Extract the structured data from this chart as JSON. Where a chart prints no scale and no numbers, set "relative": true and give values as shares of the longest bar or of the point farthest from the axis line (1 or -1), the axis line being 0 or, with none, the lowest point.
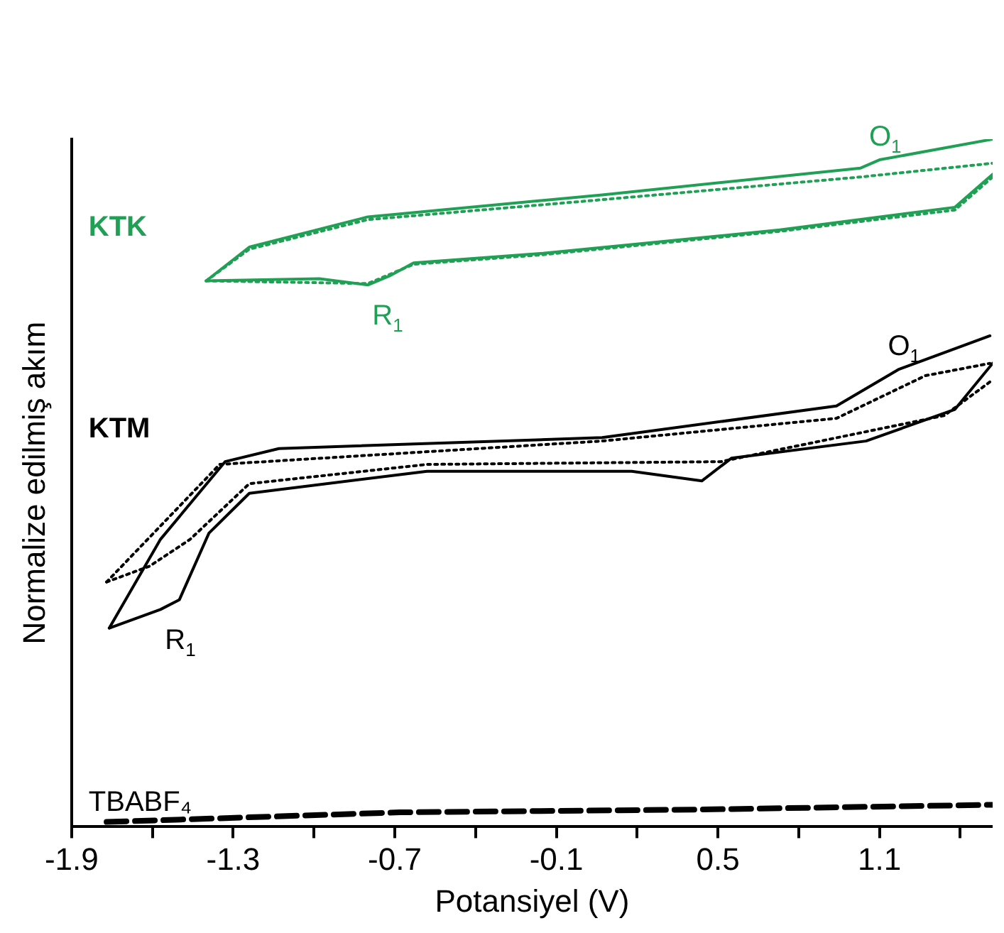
{
  "chart_data": {
    "type": "line",
    "relative": true,
    "xlabel": "Potansiyel (V)",
    "ylabel": "Normalize edilmiş akım",
    "xlim": [
      -1.9,
      1.52
    ],
    "xticks": [
      -1.9,
      {
        "value": -1.6,
        "label": null
      },
      -1.3,
      {
        "value": -1.0,
        "label": null
      },
      -0.7,
      {
        "value": -0.4,
        "label": null
      },
      -0.1,
      {
        "value": 0.2,
        "label": null
      },
      0.5,
      {
        "value": 0.8,
        "label": null
      },
      1.1,
      {
        "value": 1.4,
        "label": null
      }
    ],
    "series": [
      {
        "name": "KTK",
        "color": "#1fa055",
        "line_style": "solid",
        "x": [
          -1.4,
          -1.24,
          -0.8,
          0.07,
          1.03,
          1.1,
          1.52
        ],
        "values": [
          0.794,
          0.843,
          0.887,
          0.919,
          0.958,
          0.97,
          1.0
        ]
      },
      {
        "color": "#1fa055",
        "line_style": "solid",
        "x": [
          -1.4,
          -0.98,
          -0.8,
          -0.72,
          -0.63,
          -0.15,
          0.73,
          1.38,
          1.52
        ],
        "values": [
          0.794,
          0.797,
          0.788,
          0.801,
          0.82,
          0.834,
          0.868,
          0.901,
          0.949
        ]
      },
      {
        "color": "#1fa055",
        "line_style": "dotted",
        "x": [
          -1.4,
          -1.24,
          -0.8,
          0.07,
          1.03,
          1.52
        ],
        "values": [
          0.794,
          0.84,
          0.883,
          0.912,
          0.945,
          0.965
        ]
      },
      {
        "color": "#1fa055",
        "line_style": "dotted",
        "x": [
          -1.4,
          -0.8,
          -0.63,
          -0.15,
          0.73,
          1.38,
          1.52
        ],
        "values": [
          0.794,
          0.79,
          0.818,
          0.832,
          0.866,
          0.897,
          0.945
        ]
      },
      {
        "name": "KTM",
        "color": "#000000",
        "line_style": "solid",
        "x": [
          -1.76,
          -1.57,
          -1.33,
          -1.13,
          0.07,
          0.94,
          1.17,
          1.51
        ],
        "values": [
          0.289,
          0.418,
          0.531,
          0.55,
          0.566,
          0.612,
          0.665,
          0.714
        ]
      },
      {
        "color": "#000000",
        "line_style": "solid",
        "x": [
          -1.76,
          -1.57,
          -1.5,
          -1.39,
          -1.24,
          -0.58,
          0.18,
          0.44,
          0.55,
          1.05,
          1.38,
          1.52
        ],
        "values": [
          0.289,
          0.316,
          0.33,
          0.427,
          0.485,
          0.517,
          0.517,
          0.503,
          0.536,
          0.561,
          0.607,
          0.674
        ]
      },
      {
        "color": "#000000",
        "line_style": "dotted",
        "x": [
          -1.77,
          -1.35,
          0.07,
          0.94,
          1.27,
          1.51
        ],
        "values": [
          0.356,
          0.527,
          0.561,
          0.594,
          0.656,
          0.674
        ]
      },
      {
        "color": "#000000",
        "line_style": "dotted",
        "x": [
          -1.77,
          -1.61,
          -1.46,
          -1.24,
          -0.58,
          0.51,
          1.34,
          1.51
        ],
        "values": [
          0.356,
          0.379,
          0.418,
          0.499,
          0.527,
          0.531,
          0.598,
          0.647
        ]
      },
      {
        "name": "TBABF₄",
        "color": "#000000",
        "line_style": "dashed",
        "x": [
          -1.77,
          -0.68,
          0.42,
          1.52
        ],
        "values": [
          0.007,
          0.021,
          0.025,
          0.032
        ]
      }
    ],
    "annotations": [
      {
        "text": "R$_{1}$",
        "x": -0.8,
        "y": 0.788
      },
      {
        "text": "O$_{1}$",
        "x": 1.1,
        "y": 0.97
      },
      {
        "text": "O$_{1}$",
        "x": 1.17,
        "y": 0.665
      },
      {
        "text": "R$_{1}$",
        "x": -1.57,
        "y": 0.316
      }
    ]
  }
}
